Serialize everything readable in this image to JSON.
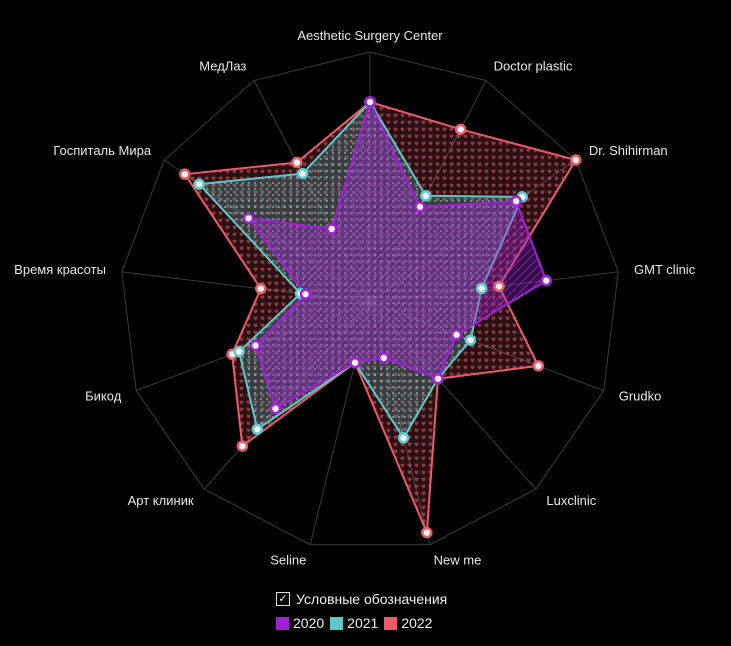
{
  "chart_data": {
    "type": "radar",
    "axes": [
      "Aesthetic Surgery Center",
      "Doctor plastic",
      "Dr. Shihirman",
      "GMT clinic",
      "Grudko",
      "Luxclinic",
      "New me",
      "Seline",
      "Арт клиник",
      "Бикод",
      "Время красоты",
      "Госпиталь Мира",
      "МедЛаз"
    ],
    "rmax": 100,
    "grid": true,
    "legend_position": "bottom-center",
    "series": [
      {
        "name": "2020",
        "color": "#a020d8",
        "values": [
          80,
          43,
          71,
          71,
          37,
          41,
          23,
          25,
          57,
          49,
          26,
          59,
          33
        ]
      },
      {
        "name": "2021",
        "color": "#5ec8c8",
        "values": [
          80,
          48,
          74,
          45,
          43,
          41,
          56,
          25,
          68,
          56,
          28,
          83,
          58
        ]
      },
      {
        "name": "2022",
        "color": "#ee5a6a",
        "values": [
          80,
          78,
          100,
          52,
          72,
          41,
          95,
          25,
          77,
          59,
          44,
          90,
          63
        ]
      }
    ]
  },
  "legend": {
    "title": "Условные обозначения",
    "check": "✓",
    "items": [
      "2020",
      "2021",
      "2022"
    ]
  }
}
